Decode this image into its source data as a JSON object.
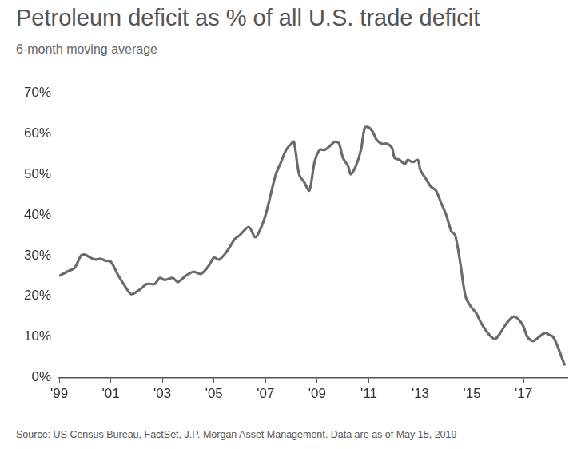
{
  "chart_data": {
    "type": "line",
    "title": "Petroleum deficit as % of all U.S. trade deficit",
    "subtitle": "6-month moving average",
    "source": "Source: US Census Bureau, FactSet, J.P. Morgan Asset Management. Data are as of May 15, 2019",
    "x": [
      1999.0,
      1999.3,
      1999.6,
      1999.85,
      2000.0,
      2000.2,
      2000.4,
      2000.6,
      2000.8,
      2001.0,
      2001.3,
      2001.6,
      2001.8,
      2002.1,
      2002.4,
      2002.7,
      2002.9,
      2003.1,
      2003.4,
      2003.6,
      2003.9,
      2004.2,
      2004.5,
      2004.8,
      2005.0,
      2005.2,
      2005.5,
      2005.8,
      2006.0,
      2006.35,
      2006.6,
      2006.8,
      2007.0,
      2007.2,
      2007.4,
      2007.6,
      2007.8,
      2008.0,
      2008.1,
      2008.3,
      2008.5,
      2008.7,
      2008.9,
      2009.1,
      2009.3,
      2009.5,
      2009.7,
      2009.85,
      2010.0,
      2010.2,
      2010.3,
      2010.5,
      2010.7,
      2010.85,
      2011.0,
      2011.15,
      2011.3,
      2011.5,
      2011.7,
      2011.9,
      2012.0,
      2012.2,
      2012.4,
      2012.5,
      2012.7,
      2012.9,
      2013.0,
      2013.2,
      2013.4,
      2013.6,
      2013.8,
      2014.0,
      2014.2,
      2014.35,
      2014.55,
      2014.75,
      2014.95,
      2015.15,
      2015.35,
      2015.55,
      2015.75,
      2015.9,
      2016.1,
      2016.3,
      2016.5,
      2016.65,
      2016.85,
      2017.0,
      2017.15,
      2017.35,
      2017.5,
      2017.7,
      2017.85,
      2018.0,
      2018.15,
      2018.3,
      2018.45,
      2018.6
    ],
    "series": [
      {
        "name": "Petroleum deficit as % of all U.S. trade deficit",
        "color": "#6b6b6b",
        "values": [
          25,
          26,
          27,
          30,
          30.2,
          29.5,
          29,
          29.2,
          28.7,
          28.5,
          25,
          22,
          20.5,
          21.5,
          23,
          23,
          24.5,
          24,
          24.5,
          23.5,
          25,
          26,
          25.5,
          27.5,
          29.5,
          29,
          31,
          34,
          35,
          37,
          34.5,
          36.5,
          40,
          45,
          50,
          53,
          56,
          57.5,
          58,
          50,
          48,
          46,
          53,
          56,
          56,
          57,
          58,
          57.5,
          54,
          52,
          50,
          52,
          56,
          61.5,
          61.5,
          60.5,
          58.5,
          57.5,
          57.5,
          56.5,
          54,
          53.5,
          52.5,
          53.5,
          53,
          53.5,
          51,
          49,
          47,
          46,
          43,
          40,
          36,
          35,
          28,
          20,
          17.5,
          16,
          13.5,
          11.5,
          10,
          9.5,
          11,
          13,
          14.5,
          15,
          14,
          12.5,
          10,
          9,
          9.5,
          10.5,
          11,
          10.5,
          10,
          8,
          5.5,
          3
        ]
      }
    ],
    "xlim": [
      1999,
      2018.7
    ],
    "xticks": [
      {
        "value": 1999,
        "label": "'99"
      },
      {
        "value": 2001,
        "label": "'01"
      },
      {
        "value": 2003,
        "label": "'03"
      },
      {
        "value": 2005,
        "label": "'05"
      },
      {
        "value": 2007,
        "label": "'07"
      },
      {
        "value": 2009,
        "label": "'09"
      },
      {
        "value": 2011,
        "label": "'11"
      },
      {
        "value": 2013,
        "label": "'13"
      },
      {
        "value": 2015,
        "label": "'15"
      },
      {
        "value": 2017,
        "label": "'17"
      }
    ],
    "ylim": [
      0,
      70
    ],
    "yticks": [
      {
        "value": 0,
        "label": "0%"
      },
      {
        "value": 10,
        "label": "10%"
      },
      {
        "value": 20,
        "label": "20%"
      },
      {
        "value": 30,
        "label": "30%"
      },
      {
        "value": 40,
        "label": "40%"
      },
      {
        "value": 50,
        "label": "50%"
      },
      {
        "value": 60,
        "label": "60%"
      },
      {
        "value": 70,
        "label": "70%"
      }
    ],
    "grid": false
  }
}
